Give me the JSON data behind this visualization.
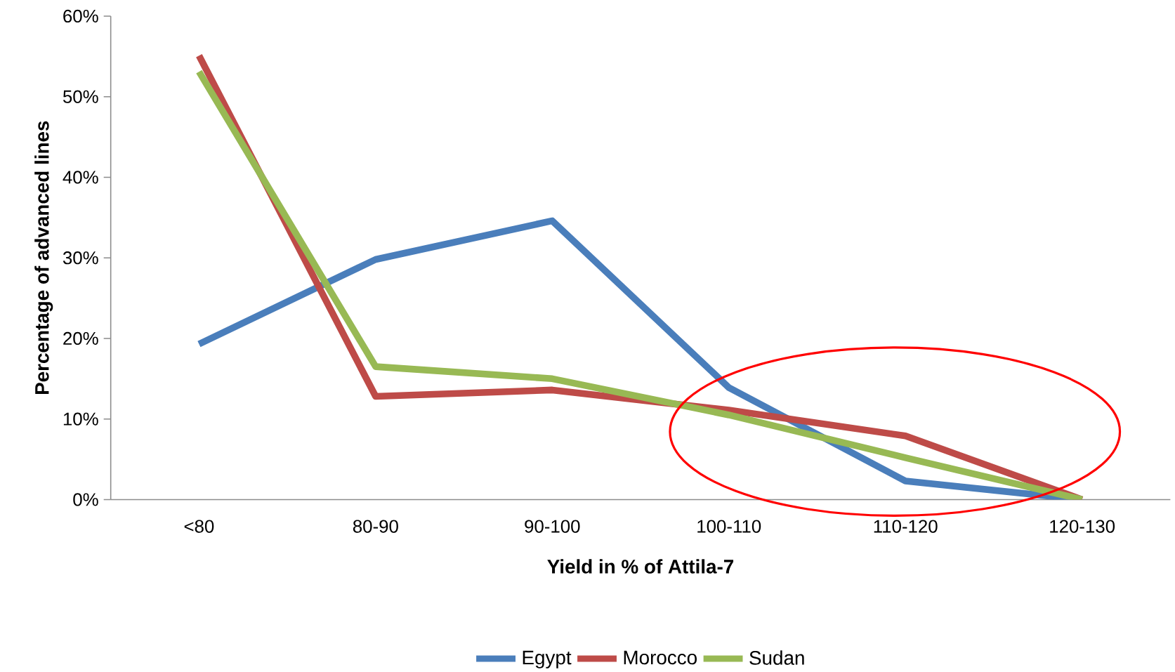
{
  "chart_data": {
    "type": "line",
    "xlabel": "Yield in % of Attila-7",
    "ylabel": "Percentage of advanced lines",
    "categories": [
      "<80",
      "80-90",
      "90-100",
      "100-110",
      "110-120",
      "120-130"
    ],
    "series": [
      {
        "name": "Egypt",
        "color": "#4a7ebb",
        "values": [
          19.3,
          29.8,
          34.6,
          13.9,
          2.3,
          0
        ]
      },
      {
        "name": "Morocco",
        "color": "#be4b48",
        "values": [
          55.1,
          12.8,
          13.6,
          11.1,
          7.9,
          0
        ]
      },
      {
        "name": "Sudan",
        "color": "#98b954",
        "values": [
          53.1,
          16.5,
          15.0,
          10.5,
          5.2,
          0
        ]
      }
    ],
    "ylim": [
      0,
      60
    ],
    "yticks": [
      {
        "value": 0,
        "label": "0%"
      },
      {
        "value": 10,
        "label": "10%"
      },
      {
        "value": 20,
        "label": "20%"
      },
      {
        "value": 30,
        "label": "30%"
      },
      {
        "value": 40,
        "label": "40%"
      },
      {
        "value": 50,
        "label": "50%"
      },
      {
        "value": 60,
        "label": "60%"
      }
    ],
    "grid": false,
    "legend": "bottom",
    "marker": "none",
    "line_style": "solid"
  }
}
